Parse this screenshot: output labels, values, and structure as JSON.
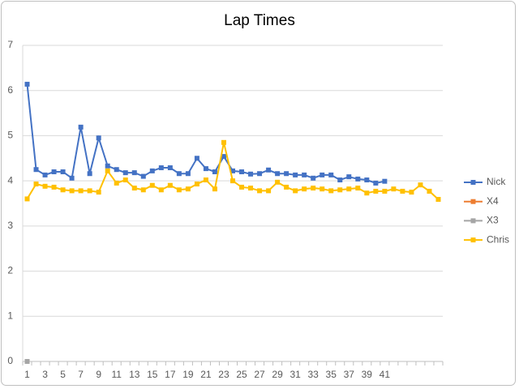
{
  "chart_data": {
    "type": "line",
    "title": "Lap Times",
    "categories": [
      "1",
      "2",
      "3",
      "4",
      "5",
      "6",
      "7",
      "8",
      "9",
      "10",
      "11",
      "12",
      "13",
      "14",
      "15",
      "16",
      "17",
      "18",
      "19",
      "20",
      "21",
      "22",
      "23",
      "24",
      "25",
      "26",
      "27",
      "28",
      "29",
      "30",
      "31",
      "32",
      "33",
      "34",
      "35",
      "36",
      "37",
      "38",
      "39",
      "40",
      "41",
      null,
      null,
      null,
      null,
      null,
      null
    ],
    "tick_label_interval": 2,
    "series": [
      {
        "name": "Nick",
        "color": "#4472c4",
        "values": [
          6.14,
          4.25,
          4.13,
          4.2,
          4.2,
          4.06,
          5.19,
          4.16,
          4.95,
          4.33,
          4.25,
          4.18,
          4.18,
          4.1,
          4.22,
          4.29,
          4.29,
          4.16,
          4.16,
          4.5,
          4.27,
          4.2,
          4.54,
          4.22,
          4.2,
          4.15,
          4.16,
          4.24,
          4.16,
          4.16,
          4.13,
          4.13,
          4.06,
          4.13,
          4.13,
          4.02,
          4.09,
          4.04,
          4.02,
          3.95,
          3.99,
          null,
          null,
          null,
          null,
          null,
          null
        ]
      },
      {
        "name": "X4",
        "color": "#ed7d31",
        "values": [
          0,
          null,
          null,
          null,
          null,
          null,
          null,
          null,
          null,
          null,
          null,
          null,
          null,
          null,
          null,
          null,
          null,
          null,
          null,
          null,
          null,
          null,
          null,
          null,
          null,
          null,
          null,
          null,
          null,
          null,
          null,
          null,
          null,
          null,
          null,
          null,
          null,
          null,
          null,
          null,
          null,
          null,
          null,
          null,
          null,
          null,
          null
        ]
      },
      {
        "name": "X3",
        "color": "#a5a5a5",
        "values": [
          0,
          null,
          null,
          null,
          null,
          null,
          null,
          null,
          null,
          null,
          null,
          null,
          null,
          null,
          null,
          null,
          null,
          null,
          null,
          null,
          null,
          null,
          null,
          null,
          null,
          null,
          null,
          null,
          null,
          null,
          null,
          null,
          null,
          null,
          null,
          null,
          null,
          null,
          null,
          null,
          null,
          null,
          null,
          null,
          null,
          null,
          null
        ]
      },
      {
        "name": "Chris",
        "color": "#ffc000",
        "values": [
          3.6,
          3.93,
          3.88,
          3.86,
          3.8,
          3.78,
          3.78,
          3.78,
          3.75,
          4.22,
          3.95,
          4.02,
          3.84,
          3.8,
          3.9,
          3.8,
          3.9,
          3.8,
          3.82,
          3.93,
          4.02,
          3.82,
          4.85,
          4.0,
          3.86,
          3.84,
          3.78,
          3.78,
          3.97,
          3.86,
          3.78,
          3.82,
          3.84,
          3.82,
          3.78,
          3.8,
          3.82,
          3.84,
          3.73,
          3.77,
          3.77,
          3.82,
          3.77,
          3.75,
          3.91,
          3.77,
          3.59
        ]
      }
    ],
    "ylim": [
      0,
      7
    ],
    "yticks": [
      0,
      1,
      2,
      3,
      4,
      5,
      6,
      7
    ],
    "grid": true,
    "legend": "right"
  }
}
